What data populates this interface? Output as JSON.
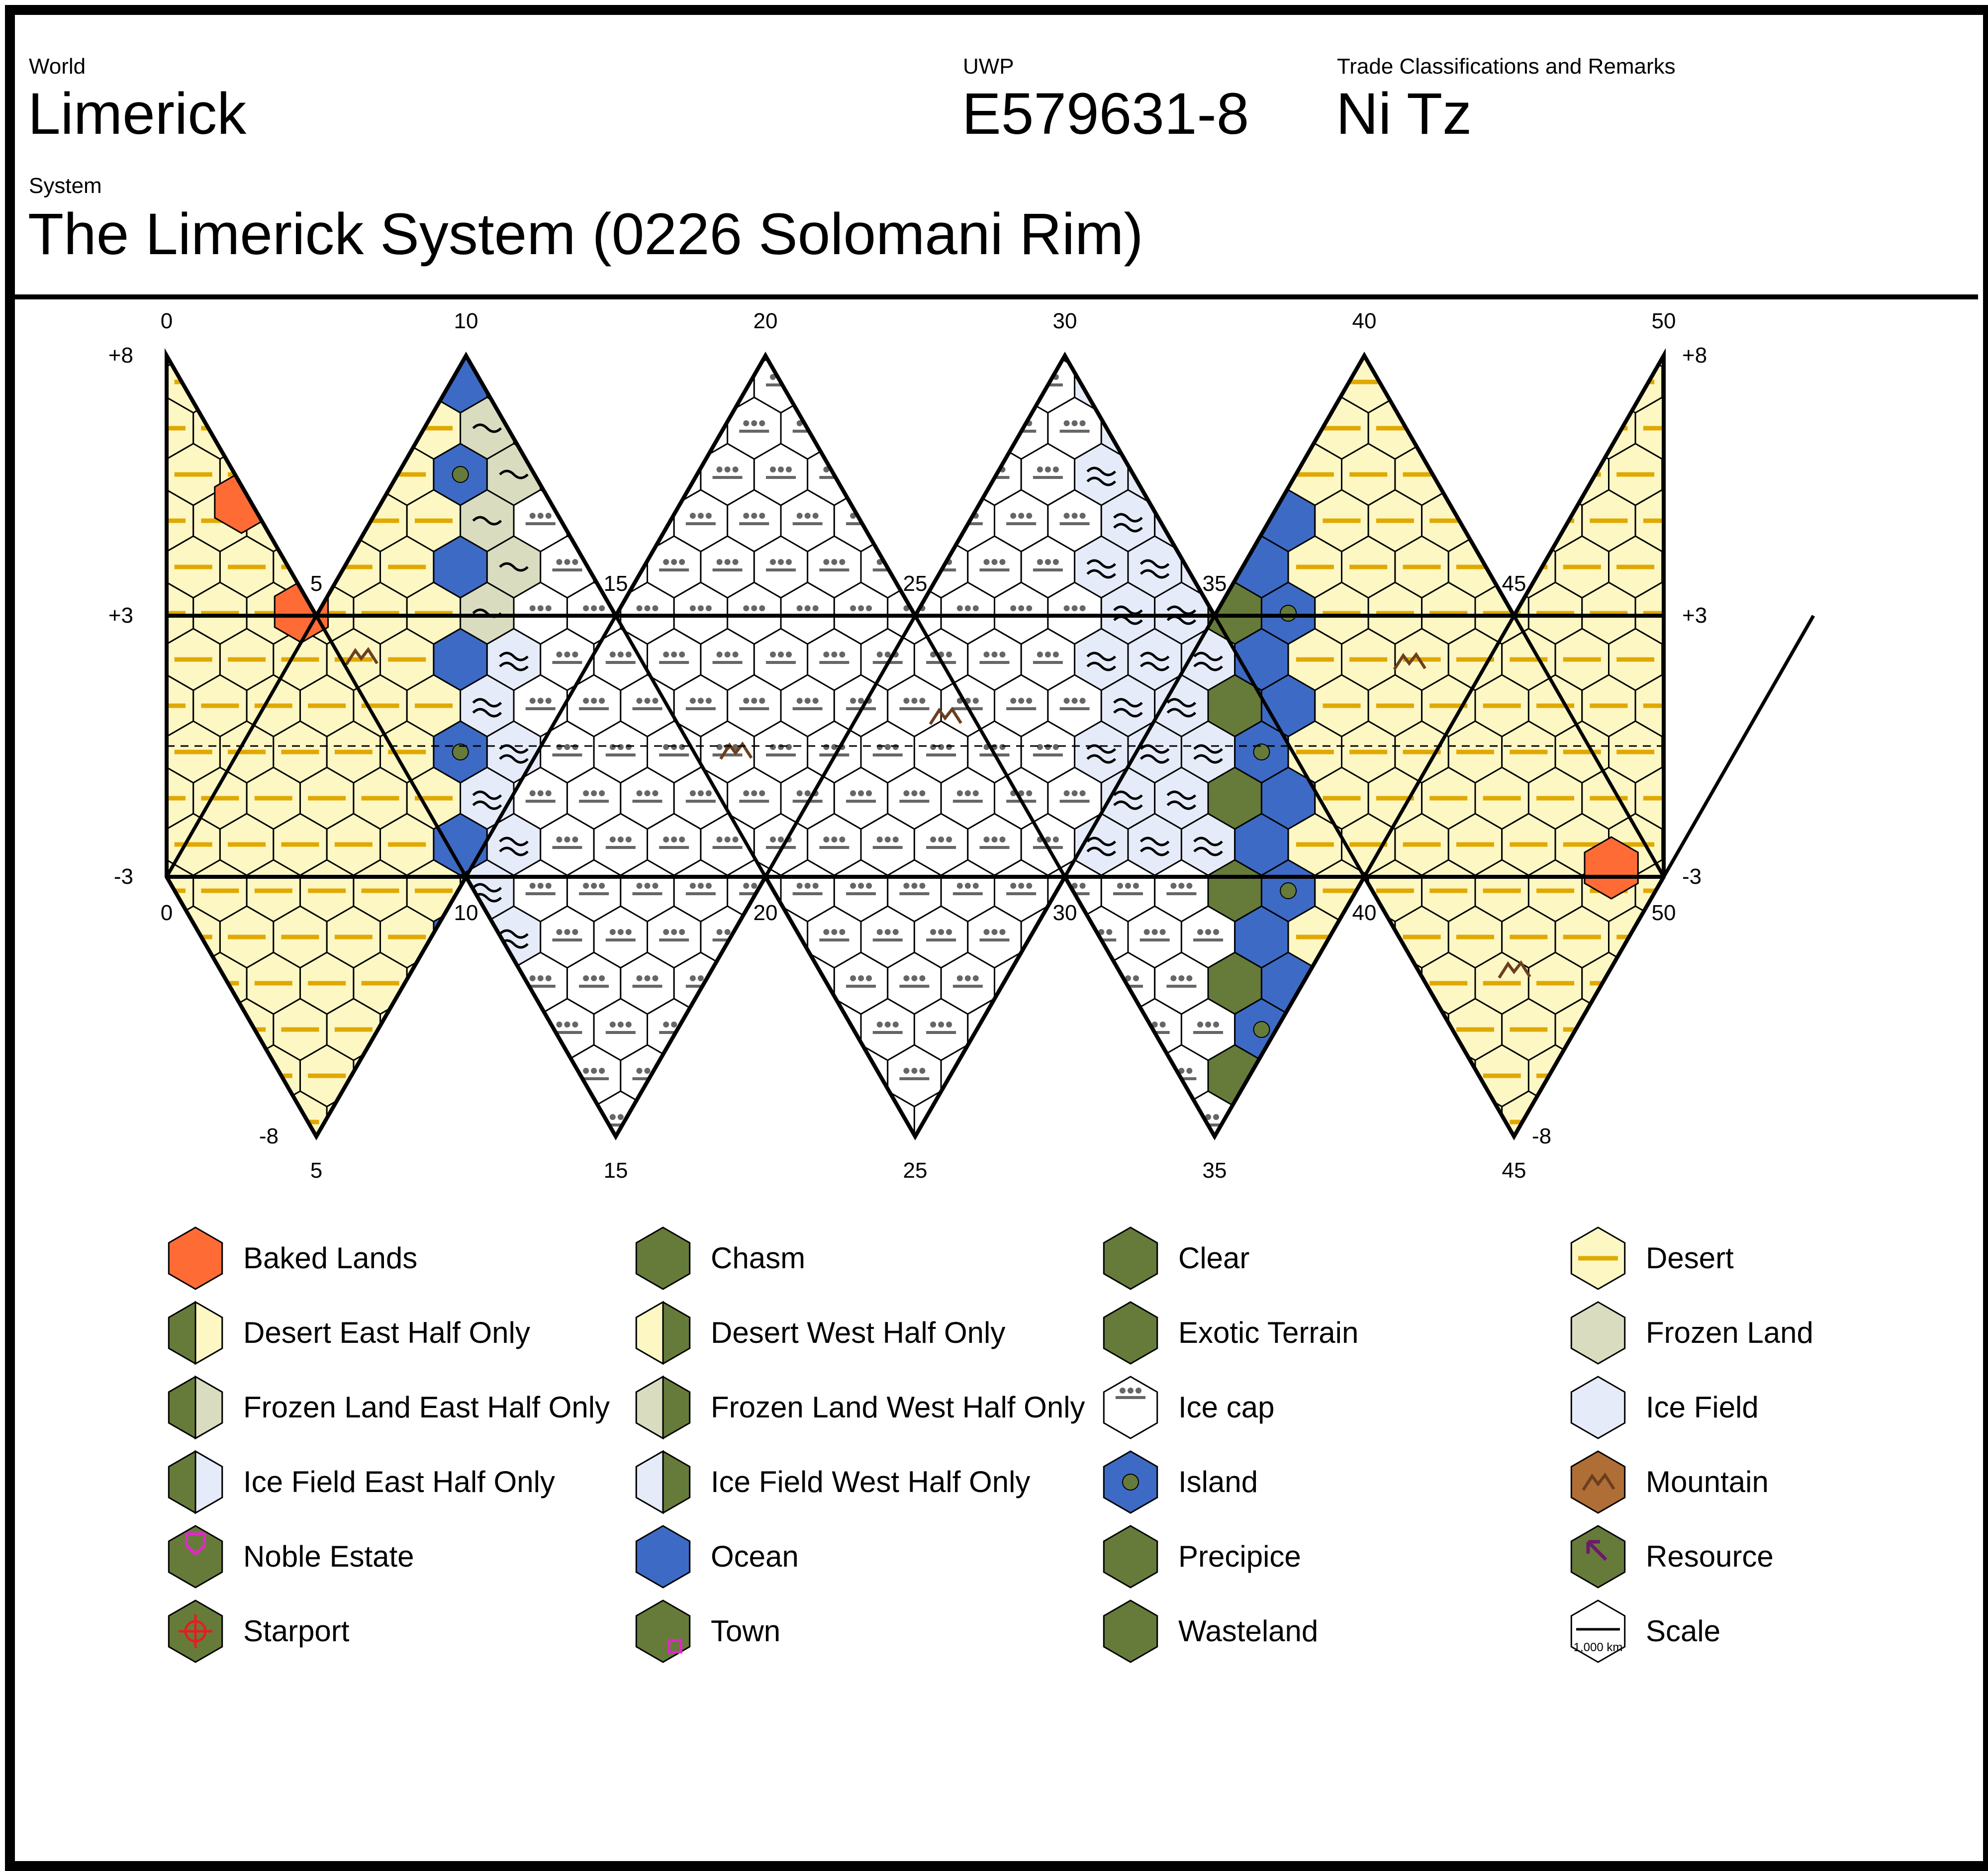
{
  "header": {
    "world_label": "World",
    "world_name": "Limerick",
    "uwp_label": "UWP",
    "uwp_value": "E579631-8",
    "trade_label": "Trade Classifications and Remarks",
    "trade_value": "Ni Tz",
    "system_label": "System",
    "system_name": "The Limerick System (0226 Solomani Rim)"
  },
  "map": {
    "top_ticks": [
      "0",
      "10",
      "20",
      "30",
      "40",
      "50"
    ],
    "upper_band_ticks": [
      "5",
      "15",
      "25",
      "35",
      "45"
    ],
    "lower_band_ticks": [
      "0",
      "10",
      "20",
      "30",
      "40",
      "50"
    ],
    "bottom_ticks": [
      "5",
      "15",
      "25",
      "35",
      "45"
    ],
    "left_latitudes": [
      "+8",
      "+3",
      "-3",
      "-8"
    ],
    "right_latitudes": [
      "+8",
      "+3",
      "-3",
      "-8"
    ]
  },
  "colors": {
    "baked_lands": "#ff6b35",
    "clear": "#667b3a",
    "desert": "#fdf7c3",
    "desert_line": "#e0a800",
    "frozen_land": "#d9dcbf",
    "ice_cap": "#ffffff",
    "ice_field": "#e5ebf8",
    "ocean": "#3d6ac4",
    "mountain": "#b06e37",
    "noble": "#e028c8",
    "starport": "#e02020",
    "resource": "#6d1a6a"
  },
  "legend": [
    {
      "label": "Baked Lands",
      "icon": "baked-lands-icon"
    },
    {
      "label": "Chasm",
      "icon": "chasm-icon"
    },
    {
      "label": "Clear",
      "icon": "clear-icon"
    },
    {
      "label": "Desert",
      "icon": "desert-icon"
    },
    {
      "label": "Desert East Half Only",
      "icon": "desert-east-half-icon"
    },
    {
      "label": "Desert West Half Only",
      "icon": "desert-west-half-icon"
    },
    {
      "label": "Exotic Terrain",
      "icon": "exotic-terrain-icon"
    },
    {
      "label": "Frozen Land",
      "icon": "frozen-land-icon"
    },
    {
      "label": "Frozen Land East Half Only",
      "icon": "frozen-land-east-half-icon"
    },
    {
      "label": "Frozen Land West Half Only",
      "icon": "frozen-land-west-half-icon"
    },
    {
      "label": "Ice cap",
      "icon": "ice-cap-icon"
    },
    {
      "label": "Ice Field",
      "icon": "ice-field-icon"
    },
    {
      "label": "Ice Field East Half Only",
      "icon": "ice-field-east-half-icon"
    },
    {
      "label": "Ice Field West Half Only",
      "icon": "ice-field-west-half-icon"
    },
    {
      "label": "Island",
      "icon": "island-icon"
    },
    {
      "label": "Mountain",
      "icon": "mountain-icon"
    },
    {
      "label": "Noble Estate",
      "icon": "noble-estate-icon"
    },
    {
      "label": "Ocean",
      "icon": "ocean-icon"
    },
    {
      "label": "Precipice",
      "icon": "precipice-icon"
    },
    {
      "label": "Resource",
      "icon": "resource-icon"
    },
    {
      "label": "Starport",
      "icon": "starport-icon"
    },
    {
      "label": "Town",
      "icon": "town-icon"
    },
    {
      "label": "Wasteland",
      "icon": "wasteland-icon"
    },
    {
      "label": "Scale",
      "icon": "scale-icon",
      "scale_text": "1,000 km"
    }
  ]
}
